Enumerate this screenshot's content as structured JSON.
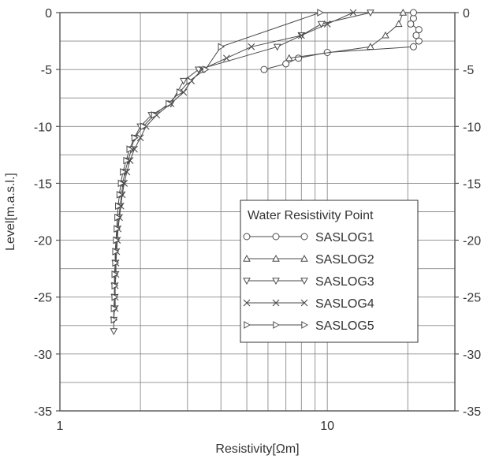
{
  "chart_data": {
    "type": "scatter",
    "xlabel": "Resistivity[Ωm]",
    "ylabel": "Level[m.a.s.l.]",
    "x_scale": "log",
    "xlim": [
      1,
      30
    ],
    "ylim": [
      -35,
      0
    ],
    "x_ticks": [
      1,
      10
    ],
    "x_tick_labels": [
      "1",
      "10"
    ],
    "y_ticks": [
      0,
      -5,
      -10,
      -15,
      -20,
      -25,
      -30,
      -35
    ],
    "y_tick_labels": [
      "0",
      "-5",
      "-10",
      "-15",
      "-20",
      "-25",
      "-30",
      "-35"
    ],
    "grid": true,
    "legend": {
      "title": "Water Resistivity Point",
      "position": "lower-right",
      "entries": [
        "SASLOG1",
        "SASLOG2",
        "SASLOG3",
        "SASLOG4",
        "SASLOG5"
      ]
    },
    "series": [
      {
        "name": "SASLOG1",
        "marker": "circle",
        "points": [
          [
            5.8,
            -5
          ],
          [
            7,
            -4.5
          ],
          [
            7.8,
            -4
          ],
          [
            10,
            -3.5
          ],
          [
            21,
            -3
          ],
          [
            22,
            -2.5
          ],
          [
            21.5,
            -2
          ],
          [
            22,
            -1.5
          ],
          [
            20.5,
            -1
          ],
          [
            21,
            -0.5
          ],
          [
            21,
            0
          ]
        ]
      },
      {
        "name": "SASLOG2",
        "marker": "triangle-up",
        "points": [
          [
            7.2,
            -4
          ],
          [
            14.5,
            -3
          ],
          [
            16.5,
            -2
          ],
          [
            18.5,
            -1
          ],
          [
            19.2,
            0
          ]
        ]
      },
      {
        "name": "SASLOG3",
        "marker": "triangle-down",
        "points": [
          [
            14.5,
            0
          ],
          [
            9.5,
            -1
          ],
          [
            8,
            -2
          ],
          [
            6.5,
            -3
          ],
          [
            3.3,
            -5
          ],
          [
            2.9,
            -6
          ],
          [
            2.6,
            -8
          ],
          [
            2.2,
            -9
          ],
          [
            2.0,
            -10
          ],
          [
            1.9,
            -11
          ],
          [
            1.85,
            -12
          ],
          [
            1.8,
            -13
          ],
          [
            1.75,
            -14
          ],
          [
            1.72,
            -15
          ],
          [
            1.7,
            -16
          ],
          [
            1.68,
            -17
          ],
          [
            1.66,
            -18
          ],
          [
            1.64,
            -19
          ],
          [
            1.63,
            -20
          ],
          [
            1.62,
            -21
          ],
          [
            1.61,
            -22
          ],
          [
            1.61,
            -23
          ],
          [
            1.6,
            -24
          ],
          [
            1.6,
            -25
          ],
          [
            1.6,
            -26
          ],
          [
            1.59,
            -27
          ],
          [
            1.59,
            -28
          ]
        ]
      },
      {
        "name": "SASLOG4",
        "marker": "x",
        "points": [
          [
            12.5,
            0
          ],
          [
            10,
            -1
          ],
          [
            8,
            -2
          ],
          [
            5.2,
            -3
          ],
          [
            4.2,
            -4
          ],
          [
            3.4,
            -5
          ],
          [
            3.1,
            -6
          ],
          [
            2.9,
            -7
          ],
          [
            2.6,
            -8
          ],
          [
            2.3,
            -9
          ],
          [
            2.1,
            -10
          ],
          [
            2.0,
            -11
          ],
          [
            1.9,
            -12
          ],
          [
            1.83,
            -13
          ],
          [
            1.78,
            -14
          ],
          [
            1.74,
            -15
          ],
          [
            1.71,
            -16
          ],
          [
            1.69,
            -17
          ],
          [
            1.67,
            -18
          ],
          [
            1.65,
            -19
          ],
          [
            1.64,
            -20
          ],
          [
            1.63,
            -21
          ],
          [
            1.62,
            -22
          ],
          [
            1.62,
            -23
          ],
          [
            1.61,
            -24
          ],
          [
            1.61,
            -25
          ],
          [
            1.61,
            -26
          ]
        ]
      },
      {
        "name": "SASLOG5",
        "marker": "triangle-right",
        "points": [
          [
            9.4,
            0
          ],
          [
            4,
            -3
          ],
          [
            3.5,
            -5
          ],
          [
            3.05,
            -6
          ],
          [
            2.8,
            -7
          ],
          [
            2.55,
            -8
          ],
          [
            2.25,
            -9
          ],
          [
            2.05,
            -10
          ],
          [
            1.9,
            -11
          ],
          [
            1.82,
            -12
          ],
          [
            1.77,
            -13
          ],
          [
            1.72,
            -14
          ],
          [
            1.69,
            -15
          ],
          [
            1.67,
            -16
          ],
          [
            1.65,
            -17
          ],
          [
            1.64,
            -18
          ],
          [
            1.63,
            -19
          ],
          [
            1.62,
            -20
          ],
          [
            1.61,
            -21
          ],
          [
            1.61,
            -22
          ],
          [
            1.6,
            -23
          ],
          [
            1.6,
            -24
          ],
          [
            1.6,
            -25
          ],
          [
            1.59,
            -26
          ],
          [
            1.59,
            -27
          ]
        ]
      }
    ]
  }
}
